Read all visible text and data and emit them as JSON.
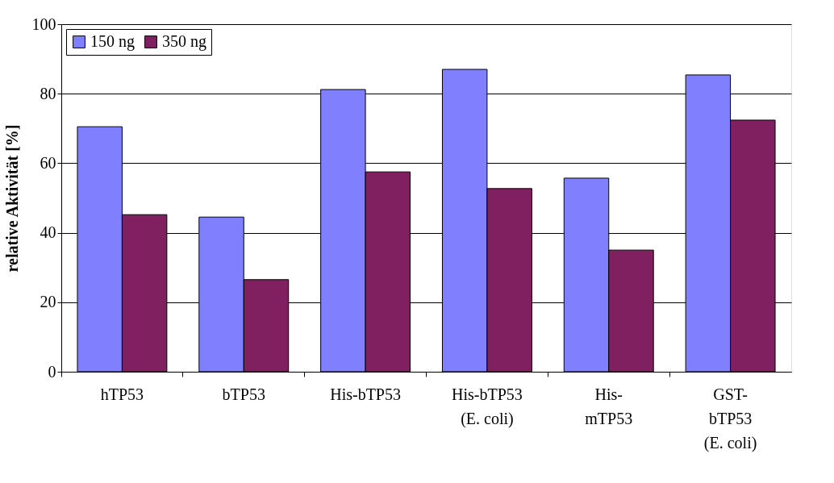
{
  "chart_data": {
    "type": "bar",
    "ylabel": "relative Aktivität [%]",
    "categories": [
      "hTP53",
      "bTP53",
      "His-bTP53",
      "His-bTP53\n(E. coli)",
      "His-\nmTP53",
      "GST-\nbTP53\n(E. coli)"
    ],
    "series": [
      {
        "name": "150 ng",
        "color": "#8080ff",
        "values": [
          70.5,
          44.5,
          81.2,
          87.0,
          55.7,
          85.4
        ]
      },
      {
        "name": "350 ng",
        "color": "#802060",
        "values": [
          45.2,
          26.5,
          57.5,
          52.7,
          35.0,
          72.4
        ]
      }
    ],
    "ylim": [
      0,
      100
    ],
    "yticks": [
      0,
      20,
      40,
      60,
      80,
      100
    ],
    "grid": "y",
    "legend": "top left"
  }
}
